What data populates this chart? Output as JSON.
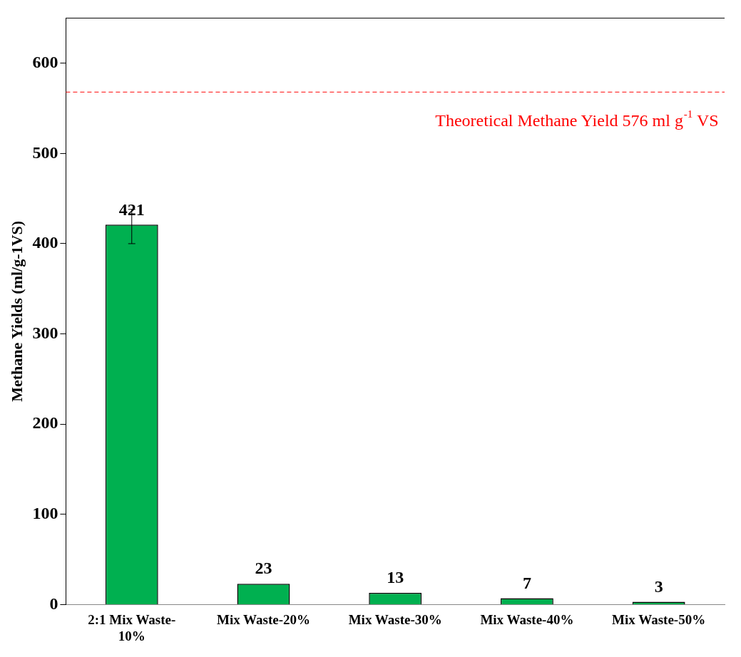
{
  "chart_data": {
    "type": "bar",
    "ylabel": "Methane Yields (ml/g-1VS)",
    "categories": [
      "2:1 Mix Waste-10%",
      "Mix Waste-20%",
      "Mix Waste-30%",
      "Mix Waste-40%",
      "Mix Waste-50%"
    ],
    "values": [
      421,
      23,
      13,
      7,
      3
    ],
    "color": "#00b050",
    "errors": [
      [
        400,
        438
      ],
      null,
      null,
      null,
      null
    ],
    "ylim": [
      0,
      650
    ],
    "yticks": [
      0,
      100,
      200,
      300,
      400,
      500,
      600
    ],
    "grid": false,
    "legend": false,
    "data_labels": true,
    "ref_lines": [
      {
        "axis": "y",
        "value": 568,
        "label": "Theoretical Methane Yield 576 ml g$^{-1}$ VS",
        "color": "#ff0000",
        "line_style": "dashed"
      }
    ]
  }
}
